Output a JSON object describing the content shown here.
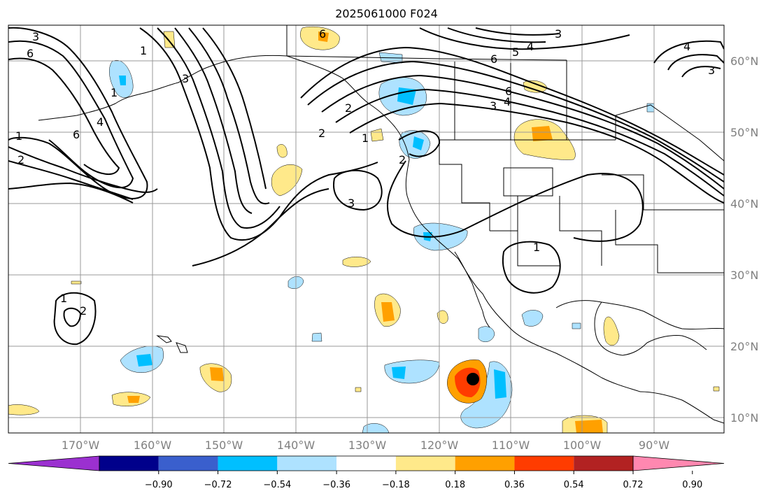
{
  "title": "2025061000 F024",
  "map": {
    "lat_labels": [
      "60°N",
      "50°N",
      "40°N",
      "30°N",
      "20°N",
      "10°N"
    ],
    "lon_labels": [
      "170°W",
      "160°W",
      "150°W",
      "140°W",
      "130°W",
      "120°W",
      "110°W",
      "100°W",
      "90°W"
    ],
    "contour_labels": [
      "3",
      "6",
      "1",
      "2",
      "6",
      "4",
      "1",
      "1",
      "2",
      "3",
      "2",
      "1",
      "6",
      "3",
      "4",
      "6",
      "5",
      "4",
      "3",
      "4",
      "3",
      "6",
      "2",
      "3",
      "1",
      "1",
      "2"
    ],
    "storm_marker": {
      "lat": 15.5,
      "lon": -115.0
    }
  },
  "colorbar": {
    "ticks": [
      "−0.90",
      "−0.72",
      "−0.54",
      "−0.36",
      "−0.18",
      "0.18",
      "0.36",
      "0.54",
      "0.72",
      "0.90"
    ],
    "colors": [
      "#9b30d0",
      "#00008b",
      "#3a5fcd",
      "#00bfff",
      "#aee2ff",
      "#ffffff",
      "#ffe98a",
      "#ffa000",
      "#ff3c00",
      "#b22222",
      "#ff88b0"
    ]
  }
}
